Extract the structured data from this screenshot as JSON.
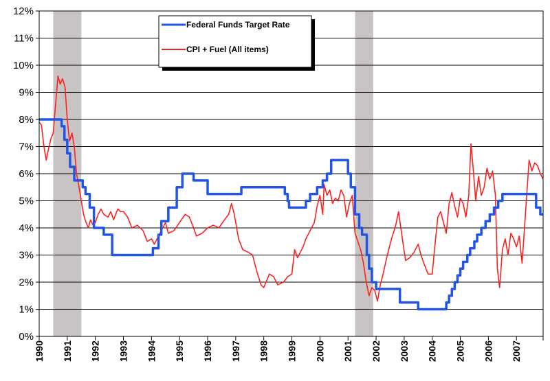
{
  "chart_data": {
    "type": "line",
    "title": "",
    "xlabel": "",
    "ylabel": "",
    "xlim": [
      1990,
      2007.95
    ],
    "ylim": [
      0,
      12
    ],
    "y_ticks": [
      "0%",
      "1%",
      "2%",
      "3%",
      "4%",
      "5%",
      "6%",
      "7%",
      "8%",
      "9%",
      "10%",
      "11%",
      "12%"
    ],
    "x_ticks": [
      "1990",
      "1991",
      "1992",
      "1993",
      "1994",
      "1995",
      "1996",
      "1997",
      "1998",
      "1999",
      "2000",
      "2001",
      "2002",
      "2003",
      "2004",
      "2005",
      "2006",
      "2007"
    ],
    "grid": "horizontal",
    "legend_position": "top-center",
    "recessions": [
      {
        "start": 1990.5,
        "end": 1991.5
      },
      {
        "start": 2001.25,
        "end": 2001.9
      }
    ],
    "series": [
      {
        "name": "Federal Funds Target Rate",
        "color": "#2255e6",
        "step": true,
        "points": [
          [
            1990.0,
            8.0
          ],
          [
            1990.55,
            8.0
          ],
          [
            1990.8,
            7.75
          ],
          [
            1990.9,
            7.25
          ],
          [
            1991.0,
            6.75
          ],
          [
            1991.1,
            6.25
          ],
          [
            1991.25,
            5.75
          ],
          [
            1991.55,
            5.5
          ],
          [
            1991.65,
            5.25
          ],
          [
            1991.8,
            4.75
          ],
          [
            1991.95,
            4.0
          ],
          [
            1992.3,
            3.75
          ],
          [
            1992.6,
            3.0
          ],
          [
            1994.05,
            3.25
          ],
          [
            1994.25,
            3.75
          ],
          [
            1994.35,
            4.25
          ],
          [
            1994.6,
            4.75
          ],
          [
            1994.9,
            5.5
          ],
          [
            1995.1,
            6.0
          ],
          [
            1995.5,
            5.75
          ],
          [
            1996.0,
            5.25
          ],
          [
            1997.2,
            5.5
          ],
          [
            1998.75,
            5.25
          ],
          [
            1998.85,
            5.0
          ],
          [
            1998.9,
            4.75
          ],
          [
            1999.5,
            5.0
          ],
          [
            1999.65,
            5.25
          ],
          [
            1999.9,
            5.5
          ],
          [
            2000.1,
            5.75
          ],
          [
            2000.25,
            6.0
          ],
          [
            2000.4,
            6.5
          ],
          [
            2001.0,
            6.0
          ],
          [
            2001.1,
            5.5
          ],
          [
            2001.25,
            4.5
          ],
          [
            2001.4,
            4.0
          ],
          [
            2001.5,
            3.75
          ],
          [
            2001.67,
            3.0
          ],
          [
            2001.75,
            2.5
          ],
          [
            2001.85,
            2.0
          ],
          [
            2002.0,
            1.75
          ],
          [
            2002.85,
            1.25
          ],
          [
            2003.5,
            1.0
          ],
          [
            2004.5,
            1.25
          ],
          [
            2004.6,
            1.5
          ],
          [
            2004.7,
            1.75
          ],
          [
            2004.8,
            2.0
          ],
          [
            2004.9,
            2.25
          ],
          [
            2005.0,
            2.5
          ],
          [
            2005.1,
            2.75
          ],
          [
            2005.25,
            3.0
          ],
          [
            2005.35,
            3.25
          ],
          [
            2005.5,
            3.5
          ],
          [
            2005.6,
            3.75
          ],
          [
            2005.75,
            4.0
          ],
          [
            2005.9,
            4.25
          ],
          [
            2006.05,
            4.5
          ],
          [
            2006.2,
            4.75
          ],
          [
            2006.35,
            5.0
          ],
          [
            2006.5,
            5.25
          ],
          [
            2007.7,
            4.75
          ],
          [
            2007.85,
            4.5
          ],
          [
            2007.95,
            4.5
          ]
        ]
      },
      {
        "name": "CPI + Fuel (All items)",
        "color": "#ff2020",
        "step": false,
        "points": [
          [
            1990.0,
            7.9
          ],
          [
            1990.08,
            7.8
          ],
          [
            1990.17,
            7.0
          ],
          [
            1990.25,
            6.5
          ],
          [
            1990.33,
            6.9
          ],
          [
            1990.42,
            7.3
          ],
          [
            1990.5,
            7.5
          ],
          [
            1990.58,
            8.5
          ],
          [
            1990.67,
            9.6
          ],
          [
            1990.75,
            9.3
          ],
          [
            1990.83,
            9.5
          ],
          [
            1990.92,
            9.2
          ],
          [
            1991.0,
            8.0
          ],
          [
            1991.08,
            7.2
          ],
          [
            1991.17,
            7.5
          ],
          [
            1991.25,
            7.0
          ],
          [
            1991.33,
            6.0
          ],
          [
            1991.42,
            5.5
          ],
          [
            1991.5,
            5.0
          ],
          [
            1991.58,
            4.5
          ],
          [
            1991.67,
            4.2
          ],
          [
            1991.75,
            4.0
          ],
          [
            1991.83,
            4.3
          ],
          [
            1991.92,
            4.1
          ],
          [
            1992.0,
            4.2
          ],
          [
            1992.1,
            4.5
          ],
          [
            1992.2,
            4.7
          ],
          [
            1992.3,
            4.5
          ],
          [
            1992.45,
            4.4
          ],
          [
            1992.55,
            4.6
          ],
          [
            1992.65,
            4.3
          ],
          [
            1992.8,
            4.7
          ],
          [
            1992.9,
            4.6
          ],
          [
            1993.0,
            4.6
          ],
          [
            1993.15,
            4.4
          ],
          [
            1993.3,
            4.0
          ],
          [
            1993.5,
            4.1
          ],
          [
            1993.7,
            3.9
          ],
          [
            1993.85,
            3.5
          ],
          [
            1994.0,
            3.6
          ],
          [
            1994.1,
            3.4
          ],
          [
            1994.25,
            3.7
          ],
          [
            1994.4,
            4.0
          ],
          [
            1994.5,
            4.2
          ],
          [
            1994.6,
            3.8
          ],
          [
            1994.8,
            3.9
          ],
          [
            1995.0,
            4.2
          ],
          [
            1995.2,
            4.5
          ],
          [
            1995.35,
            4.4
          ],
          [
            1995.5,
            4.0
          ],
          [
            1995.6,
            3.7
          ],
          [
            1995.8,
            3.8
          ],
          [
            1996.0,
            4.0
          ],
          [
            1996.2,
            4.1
          ],
          [
            1996.4,
            4.0
          ],
          [
            1996.6,
            4.3
          ],
          [
            1996.75,
            4.5
          ],
          [
            1996.85,
            4.9
          ],
          [
            1996.95,
            4.5
          ],
          [
            1997.1,
            3.6
          ],
          [
            1997.25,
            3.2
          ],
          [
            1997.45,
            3.1
          ],
          [
            1997.6,
            3.0
          ],
          [
            1997.75,
            2.4
          ],
          [
            1997.9,
            1.9
          ],
          [
            1998.0,
            1.8
          ],
          [
            1998.2,
            2.3
          ],
          [
            1998.35,
            2.2
          ],
          [
            1998.5,
            1.9
          ],
          [
            1998.7,
            2.0
          ],
          [
            1998.85,
            2.2
          ],
          [
            1999.0,
            2.3
          ],
          [
            1999.1,
            3.2
          ],
          [
            1999.2,
            2.9
          ],
          [
            1999.4,
            3.3
          ],
          [
            1999.5,
            3.6
          ],
          [
            1999.65,
            3.9
          ],
          [
            1999.8,
            4.2
          ],
          [
            1999.9,
            4.8
          ],
          [
            2000.0,
            5.2
          ],
          [
            2000.1,
            4.5
          ],
          [
            2000.15,
            5.6
          ],
          [
            2000.25,
            5.2
          ],
          [
            2000.35,
            5.4
          ],
          [
            2000.45,
            4.9
          ],
          [
            2000.55,
            5.1
          ],
          [
            2000.65,
            5.0
          ],
          [
            2000.75,
            5.4
          ],
          [
            2000.85,
            5.2
          ],
          [
            2000.95,
            4.4
          ],
          [
            2001.05,
            4.9
          ],
          [
            2001.15,
            5.2
          ],
          [
            2001.25,
            3.8
          ],
          [
            2001.35,
            3.5
          ],
          [
            2001.45,
            3.2
          ],
          [
            2001.55,
            2.7
          ],
          [
            2001.65,
            2.0
          ],
          [
            2001.75,
            1.5
          ],
          [
            2001.85,
            1.8
          ],
          [
            2001.95,
            1.7
          ],
          [
            2002.05,
            1.3
          ],
          [
            2002.15,
            1.9
          ],
          [
            2002.25,
            2.3
          ],
          [
            2002.4,
            3.0
          ],
          [
            2002.55,
            3.6
          ],
          [
            2002.7,
            4.1
          ],
          [
            2002.8,
            4.6
          ],
          [
            2002.95,
            3.5
          ],
          [
            2003.05,
            2.8
          ],
          [
            2003.2,
            2.9
          ],
          [
            2003.35,
            3.1
          ],
          [
            2003.5,
            3.4
          ],
          [
            2003.6,
            3.0
          ],
          [
            2003.7,
            2.7
          ],
          [
            2003.85,
            2.3
          ],
          [
            2004.0,
            2.3
          ],
          [
            2004.1,
            3.4
          ],
          [
            2004.2,
            4.4
          ],
          [
            2004.3,
            4.6
          ],
          [
            2004.4,
            4.2
          ],
          [
            2004.5,
            3.8
          ],
          [
            2004.6,
            4.9
          ],
          [
            2004.7,
            5.3
          ],
          [
            2004.8,
            4.8
          ],
          [
            2004.9,
            4.4
          ],
          [
            2005.0,
            5.1
          ],
          [
            2005.1,
            4.9
          ],
          [
            2005.2,
            4.4
          ],
          [
            2005.3,
            5.2
          ],
          [
            2005.38,
            7.1
          ],
          [
            2005.45,
            6.3
          ],
          [
            2005.55,
            5.0
          ],
          [
            2005.65,
            5.9
          ],
          [
            2005.75,
            5.2
          ],
          [
            2005.85,
            5.5
          ],
          [
            2005.95,
            6.2
          ],
          [
            2006.05,
            5.8
          ],
          [
            2006.15,
            6.1
          ],
          [
            2006.25,
            5.2
          ],
          [
            2006.32,
            2.5
          ],
          [
            2006.4,
            1.8
          ],
          [
            2006.5,
            3.2
          ],
          [
            2006.6,
            3.6
          ],
          [
            2006.7,
            3.0
          ],
          [
            2006.8,
            3.8
          ],
          [
            2006.9,
            3.6
          ],
          [
            2007.0,
            3.3
          ],
          [
            2007.1,
            3.7
          ],
          [
            2007.2,
            2.7
          ],
          [
            2007.3,
            4.2
          ],
          [
            2007.45,
            6.5
          ],
          [
            2007.55,
            6.1
          ],
          [
            2007.65,
            6.4
          ],
          [
            2007.75,
            6.3
          ],
          [
            2007.85,
            6.0
          ],
          [
            2007.95,
            5.8
          ]
        ]
      }
    ]
  },
  "colors": {
    "recession_band": "#c8c4c4",
    "grid": "#000000"
  }
}
